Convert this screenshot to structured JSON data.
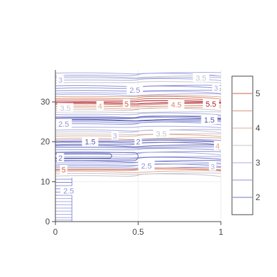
{
  "chart_data": {
    "type": "contour",
    "x_axis": {
      "range": [
        0,
        1
      ],
      "ticks": [
        0,
        0.5,
        1
      ],
      "tick_labels": [
        "0",
        "0.5",
        "1"
      ],
      "title": ""
    },
    "y_axis": {
      "range": [
        0,
        38
      ],
      "ticks": [
        0,
        10,
        20,
        30
      ],
      "tick_labels": [
        "0",
        "10",
        "20",
        "30"
      ],
      "title": ""
    },
    "grid": true,
    "colorbar": {
      "position": "right",
      "ticks": [
        2,
        3,
        4,
        5
      ],
      "tick_labels": [
        "2",
        "3",
        "4",
        "5"
      ],
      "range": [
        1.5,
        5.5
      ]
    },
    "levels": [
      1.5,
      2,
      2.5,
      3,
      3.5,
      4,
      4.5,
      5,
      5.5
    ],
    "level_colors": {
      "1.5": "#5358a8",
      "2": "#6e74c4",
      "2.5": "#8c91d8",
      "3": "#a7abe4",
      "3.5": "#c4c4cc",
      "4": "#e3a98e",
      "4.5": "#d9876c",
      "5": "#c9604a",
      "5.5": "#b2182b"
    },
    "data_region": {
      "x_min": 0,
      "x_max": 1,
      "y_min": 0,
      "y_max": 38,
      "lower_band_x_max": 0.1,
      "lower_band_y_max": 11
    },
    "annotations": [
      {
        "text": "3",
        "x": 0.03,
        "y": 35.5,
        "level": 3
      },
      {
        "text": "3.5",
        "x": 0.88,
        "y": 36.0,
        "level": 3.5
      },
      {
        "text": "2.5",
        "x": 0.48,
        "y": 33.0,
        "level": 2.5
      },
      {
        "text": "3",
        "x": 0.97,
        "y": 33.5,
        "level": 3
      },
      {
        "text": "3.5",
        "x": 0.06,
        "y": 28.5,
        "level": 3.5
      },
      {
        "text": "4",
        "x": 0.27,
        "y": 29.0,
        "level": 4
      },
      {
        "text": "5",
        "x": 0.43,
        "y": 29.5,
        "level": 5
      },
      {
        "text": "4.5",
        "x": 0.73,
        "y": 29.3,
        "level": 4.5
      },
      {
        "text": "5.5",
        "x": 0.94,
        "y": 29.5,
        "level": 5.5
      },
      {
        "text": "1.5",
        "x": 0.93,
        "y": 25.5,
        "level": 1.5
      },
      {
        "text": "2.5",
        "x": 0.05,
        "y": 24.5,
        "level": 2.5
      },
      {
        "text": "3",
        "x": 0.36,
        "y": 21.5,
        "level": 3
      },
      {
        "text": "3.5",
        "x": 0.64,
        "y": 22.0,
        "level": 3.5
      },
      {
        "text": "1.5",
        "x": 0.21,
        "y": 20.0,
        "level": 1.5
      },
      {
        "text": "2",
        "x": 0.5,
        "y": 20.0,
        "level": 2
      },
      {
        "text": "4",
        "x": 0.98,
        "y": 19.0,
        "level": 4
      },
      {
        "text": "2",
        "x": 0.03,
        "y": 16.0,
        "level": 2
      },
      {
        "text": "2.5",
        "x": 0.55,
        "y": 14.0,
        "level": 2.5
      },
      {
        "text": "3",
        "x": 0.95,
        "y": 13.8,
        "level": 3
      },
      {
        "text": "5",
        "x": 0.05,
        "y": 13.0,
        "level": 5
      },
      {
        "text": "2.5",
        "x": 0.08,
        "y": 7.7,
        "level": 2.5
      }
    ],
    "contour_lines": [
      {
        "level": 3,
        "ys": [
          37.2,
          36.6,
          36.0,
          35.4
        ]
      },
      {
        "level": 3.5,
        "ys": [
          36.3,
          34.8
        ]
      },
      {
        "level": 2.5,
        "ys": [
          34.0,
          33.4,
          32.8
        ]
      },
      {
        "level": 3,
        "ys": [
          32.2,
          31.8
        ]
      },
      {
        "level": 4,
        "ys": [
          31.3,
          28.4
        ]
      },
      {
        "level": 4.5,
        "ys": [
          30.8,
          28.9
        ]
      },
      {
        "level": 5,
        "ys": [
          30.4,
          29.4
        ]
      },
      {
        "level": 5.5,
        "ys": [
          30.0,
          29.7
        ]
      },
      {
        "level": 3.5,
        "ys": [
          27.9,
          27.4
        ]
      },
      {
        "level": 3,
        "ys": [
          26.8,
          26.3
        ]
      },
      {
        "level": 2.5,
        "ys": [
          25.8,
          24.9,
          24.4
        ]
      },
      {
        "level": 2,
        "ys": [
          25.3
        ]
      },
      {
        "level": 1.5,
        "ys": [
          26.0,
          25.5
        ]
      },
      {
        "level": 3,
        "ys": [
          23.6,
          22.9
        ]
      },
      {
        "level": 3.5,
        "ys": [
          22.4,
          21.9
        ]
      },
      {
        "level": 4,
        "ys": [
          21.4,
          20.8
        ]
      },
      {
        "level": 2.5,
        "ys": [
          20.4,
          19.8
        ]
      },
      {
        "level": 2,
        "ys": [
          19.3,
          18.6
        ]
      },
      {
        "level": 1.5,
        "ys": [
          20.0,
          19.0
        ]
      },
      {
        "level": 2.5,
        "ys": [
          18.0,
          17.4
        ]
      },
      {
        "level": 3,
        "ys": [
          16.8,
          16.2
        ]
      },
      {
        "level": 2,
        "ys": [
          15.7,
          15.1
        ]
      },
      {
        "level": 3,
        "ys": [
          14.7,
          14.3
        ]
      },
      {
        "level": 2.5,
        "ys": [
          13.9,
          13.5
        ]
      },
      {
        "level": 4,
        "ys": [
          13.1,
          12.5
        ]
      },
      {
        "level": 5,
        "ys": [
          12.9
        ]
      },
      {
        "level": 3.5,
        "ys": [
          12.0,
          11.4
        ]
      }
    ],
    "lower_band_lines": [
      {
        "level": 2.5,
        "ys": [
          10.6,
          9.8,
          9.0,
          8.2,
          7.4,
          6.6
        ]
      },
      {
        "level": 3,
        "ys": [
          5.8,
          5.0,
          4.2,
          3.4,
          2.6,
          1.8,
          1.0,
          0.4
        ]
      }
    ],
    "loops": [
      {
        "level": 2,
        "x_from": 0.0,
        "x_to": 0.5,
        "y_top": 17.3,
        "y_bottom": 15.3
      },
      {
        "level": 1.5,
        "x_from": 0.0,
        "x_to": 0.34,
        "y_top": 17.0,
        "y_bottom": 15.9
      }
    ]
  }
}
